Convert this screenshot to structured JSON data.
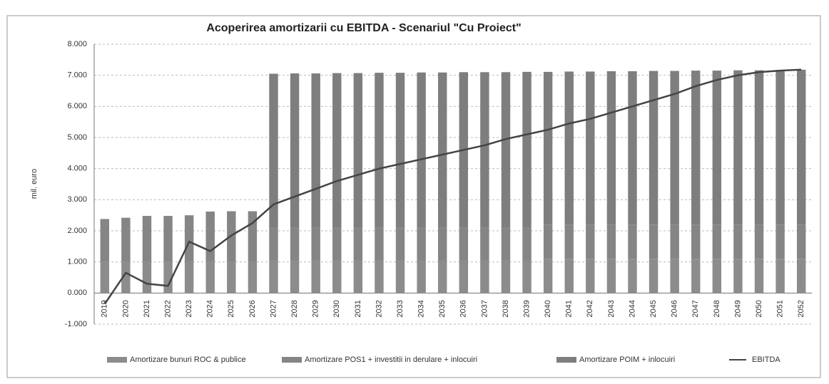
{
  "chart_data": {
    "type": "bar",
    "title": "Acoperirea amortizarii cu EBITDA - Scenariul \"Cu Proiect\"",
    "y_label": "mil. euro",
    "categories": [
      "2019",
      "2020",
      "2021",
      "2022",
      "2023",
      "2024",
      "2025",
      "2026",
      "2027",
      "2028",
      "2029",
      "2030",
      "2031",
      "2032",
      "2033",
      "2034",
      "2035",
      "2036",
      "2037",
      "2038",
      "2039",
      "2040",
      "2041",
      "2042",
      "2043",
      "2044",
      "2045",
      "2046",
      "2047",
      "2048",
      "2049",
      "2050",
      "2051",
      "2052"
    ],
    "series": [
      {
        "name": "Amortizare bunuri ROC & publice",
        "color": "#8c8c8c",
        "stack": true,
        "values": [
          1000,
          1000,
          1000,
          1000,
          1000,
          1000,
          1000,
          1000,
          1050,
          1050,
          1050,
          1050,
          1050,
          1050,
          1050,
          1050,
          1050,
          1050,
          1050,
          1050,
          1050,
          1100,
          1100,
          1100,
          1100,
          1100,
          1100,
          1100,
          1100,
          1100,
          1100,
          1100,
          1100,
          1100
        ]
      },
      {
        "name": "Amortizare POS1 + investitii in derulare + inlocuiri",
        "color": "#858585",
        "stack": true,
        "values": [
          1380,
          1420,
          1480,
          1480,
          1500,
          1620,
          1630,
          1630,
          1050,
          1050,
          1050,
          1050,
          1050,
          1050,
          1050,
          1050,
          1050,
          1050,
          1050,
          1050,
          1050,
          1100,
          1100,
          1100,
          1100,
          1100,
          1100,
          1100,
          1100,
          1100,
          1100,
          1100,
          1100,
          1100
        ]
      },
      {
        "name": "Amortizare POIM + inlocuiri",
        "color": "#7e7e7e",
        "stack": true,
        "values": [
          0,
          0,
          0,
          0,
          0,
          0,
          0,
          0,
          4950,
          4960,
          4960,
          4970,
          4970,
          4980,
          4980,
          4990,
          4990,
          5000,
          5000,
          5000,
          5010,
          4910,
          4920,
          4920,
          4930,
          4930,
          4940,
          4940,
          4950,
          4950,
          4960,
          4960,
          4970,
          4980
        ]
      },
      {
        "name": "EBITDA",
        "color": "#444444",
        "kind": "line",
        "values": [
          -350,
          650,
          300,
          230,
          1650,
          1350,
          1850,
          2250,
          2850,
          3100,
          3350,
          3600,
          3800,
          4000,
          4150,
          4300,
          4450,
          4600,
          4750,
          4950,
          5100,
          5250,
          5450,
          5600,
          5800,
          6000,
          6200,
          6400,
          6650,
          6850,
          7000,
          7100,
          7150,
          7180
        ]
      }
    ],
    "ylim": [
      -1000,
      8000
    ],
    "yticks": [
      {
        "value": -1000,
        "label": "-1.000"
      },
      {
        "value": 0,
        "label": "0.000"
      },
      {
        "value": 1000,
        "label": "1.000"
      },
      {
        "value": 2000,
        "label": "2.000"
      },
      {
        "value": 3000,
        "label": "3.000"
      },
      {
        "value": 4000,
        "label": "4.000"
      },
      {
        "value": 5000,
        "label": "5.000"
      },
      {
        "value": 6000,
        "label": "6.000"
      },
      {
        "value": 7000,
        "label": "7.000"
      },
      {
        "value": 8000,
        "label": "8.000"
      }
    ],
    "grid": true,
    "legend": "bottom"
  }
}
